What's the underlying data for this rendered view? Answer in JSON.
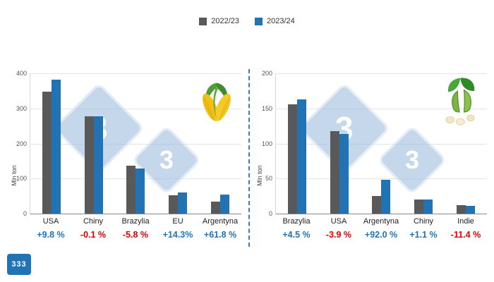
{
  "legend": {
    "items": [
      {
        "label": "2022/23",
        "color": "#595959"
      },
      {
        "label": "2023/24",
        "color": "#2173b4"
      }
    ]
  },
  "colors": {
    "positive": "#2173b4",
    "negative": "#e00000",
    "grid": "#e4e4e4"
  },
  "watermark": {
    "text": "3"
  },
  "logo": {
    "text": "333"
  },
  "chart_data": [
    {
      "type": "bar",
      "crop": "corn",
      "icon": "corn-icon",
      "ylabel": "Mln ton",
      "ylim": [
        0,
        400
      ],
      "ymax": 400,
      "yticks": [
        0,
        100,
        200,
        300,
        400
      ],
      "grid": true,
      "legend_position": "top-center",
      "categories": [
        "USA",
        "Chiny",
        "Brazylia",
        "EU",
        "Argentyna"
      ],
      "series": [
        {
          "name": "2022/23",
          "color": "#595959",
          "values": [
            348,
            277.2,
            137,
            52,
            34
          ]
        },
        {
          "name": "2023/24",
          "color": "#2173b4",
          "values": [
            382,
            276.9,
            129,
            59.5,
            55
          ]
        }
      ],
      "changes": [
        {
          "label": "+9.8 %",
          "trend": "positive"
        },
        {
          "label": "-0.1 %",
          "trend": "negative"
        },
        {
          "label": "-5.8 %",
          "trend": "negative"
        },
        {
          "label": "+14.3%",
          "trend": "positive"
        },
        {
          "label": "+61.8 %",
          "trend": "positive"
        }
      ]
    },
    {
      "type": "bar",
      "crop": "soybean",
      "icon": "soybean-icon",
      "ylabel": "Mln ton",
      "ylim": [
        0,
        200
      ],
      "ymax": 200,
      "yticks": [
        0,
        50,
        100,
        150,
        200
      ],
      "grid": true,
      "legend_position": "top-center",
      "categories": [
        "Brazylia",
        "USA",
        "Argentyna",
        "Chiny",
        "Indie"
      ],
      "series": [
        {
          "name": "2022/23",
          "color": "#595959",
          "values": [
            156,
            118,
            25,
            20.3,
            12.4
          ]
        },
        {
          "name": "2023/24",
          "color": "#2173b4",
          "values": [
            163,
            113.4,
            48,
            20.5,
            11
          ]
        }
      ],
      "changes": [
        {
          "label": "+4.5 %",
          "trend": "positive"
        },
        {
          "label": "-3.9 %",
          "trend": "negative"
        },
        {
          "label": "+92.0 %",
          "trend": "positive"
        },
        {
          "label": "+1.1 %",
          "trend": "positive"
        },
        {
          "label": "-11.4 %",
          "trend": "negative"
        }
      ]
    }
  ]
}
